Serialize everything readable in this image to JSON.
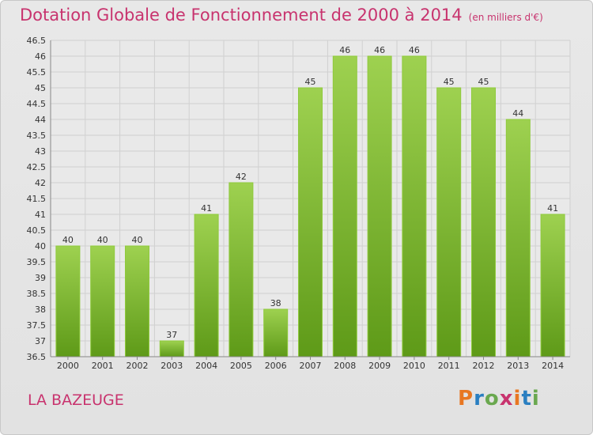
{
  "header": {
    "title": "Dotation Globale de Fonctionnement de 2000 à 2014",
    "subtitle": "(en milliers d'€)"
  },
  "place": "LA BAZEUGE",
  "logo": {
    "text": "Proxiti",
    "colors": [
      "#e87722",
      "#2a7fc1",
      "#6aa84f",
      "#c8336e"
    ]
  },
  "chart_data": {
    "type": "bar",
    "categories": [
      "2000",
      "2001",
      "2002",
      "2003",
      "2004",
      "2005",
      "2006",
      "2007",
      "2008",
      "2009",
      "2010",
      "2011",
      "2012",
      "2013",
      "2014"
    ],
    "values": [
      40,
      40,
      40,
      37,
      41,
      42,
      38,
      45,
      46,
      46,
      46,
      45,
      45,
      44,
      41
    ],
    "ylim": [
      36.5,
      46.5
    ],
    "yticks": [
      "36.5",
      "37",
      "37.5",
      "38",
      "38.5",
      "39",
      "39.5",
      "40",
      "40.5",
      "41",
      "41.5",
      "42",
      "42.5",
      "43",
      "43.5",
      "44",
      "44.5",
      "45",
      "45.5",
      "46",
      "46.5"
    ],
    "grid": true,
    "bar_color": "#7cb82f",
    "xlabel": "",
    "ylabel": ""
  }
}
